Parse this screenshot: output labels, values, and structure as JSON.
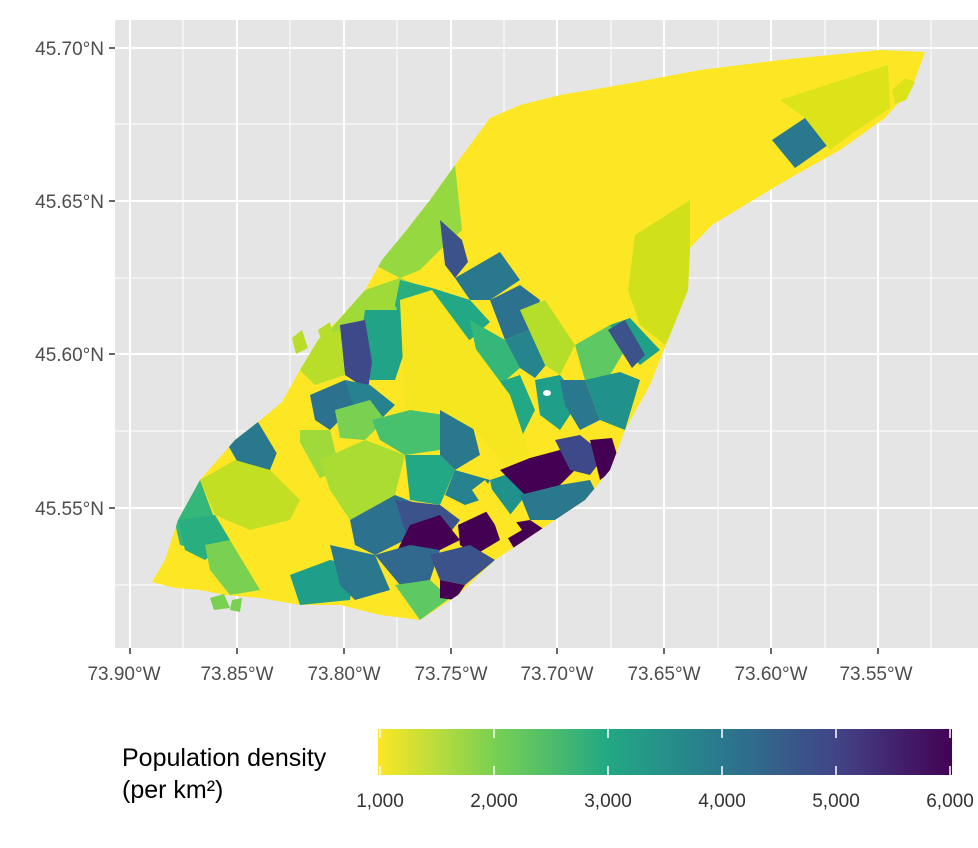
{
  "map": {
    "title": "",
    "panel_bg": "#e5e5e5",
    "grid_color": "#ffffff",
    "y_ticks": [
      "45.55°N",
      "45.60°N",
      "45.65°N",
      "45.70°N"
    ],
    "x_ticks": [
      "73.90°W",
      "73.85°W",
      "73.80°W",
      "73.75°W",
      "73.70°W",
      "73.65°W",
      "73.60°W",
      "73.55°W"
    ],
    "fill_scale": "viridis (reversed)",
    "regions": [
      {
        "name": "",
        "density": 1000
      },
      {
        "name": "",
        "density": 2000
      },
      {
        "name": "",
        "density": 3000
      },
      {
        "name": "",
        "density": 4000
      },
      {
        "name": "",
        "density": 5000
      },
      {
        "name": "",
        "density": 6000
      }
    ]
  },
  "legend": {
    "title_line1": "Population density",
    "title_line2": "(per km²)",
    "ticks": [
      "1,000",
      "2,000",
      "3,000",
      "4,000",
      "5,000",
      "6,000"
    ],
    "range": [
      1000,
      6000
    ],
    "colors": [
      "#fde725",
      "#7ad151",
      "#22a884",
      "#2a788e",
      "#414487",
      "#440154"
    ]
  }
}
